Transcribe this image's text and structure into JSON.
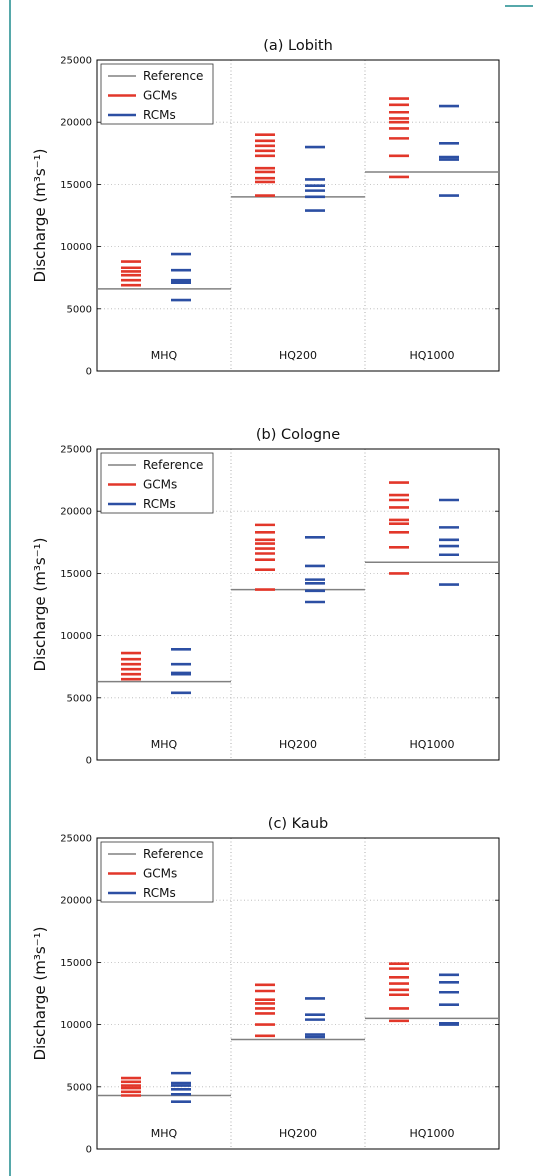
{
  "chart_data": [
    {
      "type": "scatter",
      "title": "(a) Lobith",
      "ylabel": "Discharge (m³s⁻¹)",
      "ylim": [
        0,
        25000
      ],
      "yticks": [
        0,
        5000,
        10000,
        15000,
        20000,
        25000
      ],
      "categories": [
        "MHQ",
        "HQ200",
        "HQ1000"
      ],
      "grid": true,
      "legend": "top-left",
      "series": [
        {
          "name": "Reference",
          "color": "#808080",
          "values": [
            6600,
            14000,
            16000
          ]
        },
        {
          "name": "GCMs",
          "color": "#e2372a",
          "values": [
            [
              8800,
              8300,
              8000,
              7700,
              7300,
              6900
            ],
            [
              19000,
              18500,
              18100,
              17700,
              17300,
              16300,
              16000,
              15500,
              15200,
              14100
            ],
            [
              21900,
              21400,
              20800,
              20300,
              20000,
              19500,
              18700,
              17300,
              15600
            ]
          ]
        },
        {
          "name": "RCMs",
          "color": "#2c4fa3",
          "values": [
            [
              9400,
              8100,
              7300,
              7100,
              5700
            ],
            [
              18000,
              15400,
              14900,
              14500,
              14000,
              12900
            ],
            [
              21300,
              18300,
              17200,
              17000,
              14100
            ]
          ]
        }
      ]
    },
    {
      "type": "scatter",
      "title": "(b) Cologne",
      "ylabel": "Discharge (m³s⁻¹)",
      "ylim": [
        0,
        25000
      ],
      "yticks": [
        0,
        5000,
        10000,
        15000,
        20000,
        25000
      ],
      "categories": [
        "MHQ",
        "HQ200",
        "HQ1000"
      ],
      "grid": true,
      "legend": "top-left",
      "series": [
        {
          "name": "Reference",
          "color": "#808080",
          "values": [
            6300,
            13700,
            15900
          ]
        },
        {
          "name": "GCMs",
          "color": "#e2372a",
          "values": [
            [
              8600,
              8100,
              7700,
              7300,
              6900,
              6500
            ],
            [
              18900,
              18300,
              17700,
              17400,
              17000,
              16600,
              16100,
              15300,
              13700
            ],
            [
              22300,
              21300,
              20900,
              20300,
              19300,
              19000,
              18300,
              17100,
              15000
            ]
          ]
        },
        {
          "name": "RCMs",
          "color": "#2c4fa3",
          "values": [
            [
              8900,
              7700,
              7000,
              6900,
              5400
            ],
            [
              17900,
              15600,
              14500,
              14200,
              13600,
              12700
            ],
            [
              20900,
              18700,
              17700,
              17200,
              16500,
              14100
            ]
          ]
        }
      ]
    },
    {
      "type": "scatter",
      "title": "(c) Kaub",
      "ylabel": "Discharge (m³s⁻¹)",
      "ylim": [
        0,
        25000
      ],
      "yticks": [
        0,
        5000,
        10000,
        15000,
        20000,
        25000
      ],
      "categories": [
        "MHQ",
        "HQ200",
        "HQ1000"
      ],
      "grid": true,
      "legend": "top-left",
      "series": [
        {
          "name": "Reference",
          "color": "#808080",
          "values": [
            4300,
            8800,
            10500
          ]
        },
        {
          "name": "GCMs",
          "color": "#e2372a",
          "values": [
            [
              5700,
              5400,
              5100,
              4900,
              4600,
              4300
            ],
            [
              13200,
              12700,
              12000,
              11700,
              11300,
              10900,
              10000,
              9100
            ],
            [
              14900,
              14500,
              13800,
              13300,
              12800,
              12400,
              11300,
              10300
            ]
          ]
        },
        {
          "name": "RCMs",
          "color": "#2c4fa3",
          "values": [
            [
              6100,
              5300,
              5100,
              4800,
              4400,
              3800
            ],
            [
              12100,
              10800,
              10400,
              9200,
              9000
            ],
            [
              14000,
              13400,
              12600,
              11600,
              10100,
              10000
            ]
          ]
        }
      ]
    }
  ]
}
